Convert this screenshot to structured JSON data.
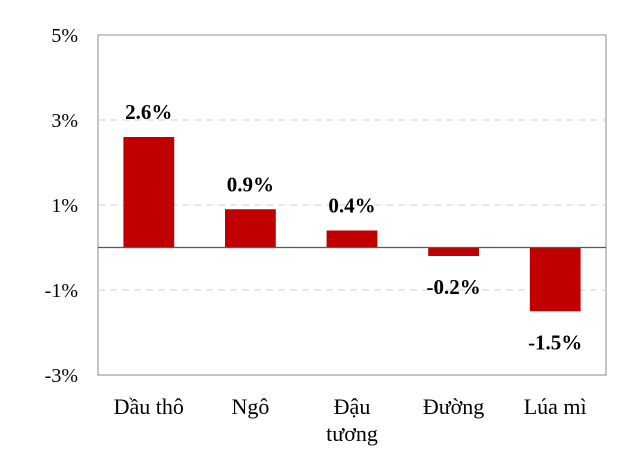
{
  "chart_data": {
    "type": "bar",
    "categories": [
      "Dầu thô",
      "Ngô",
      "Đậu tương",
      "Đường",
      "Lúa mì"
    ],
    "category_lines": [
      [
        "Dầu thô"
      ],
      [
        "Ngô"
      ],
      [
        "Đậu",
        "tương"
      ],
      [
        "Đường"
      ],
      [
        "Lúa mì"
      ]
    ],
    "values": [
      2.6,
      0.9,
      0.4,
      -0.2,
      -1.5
    ],
    "data_labels": [
      "2.6%",
      "0.9%",
      "0.4%",
      "-0.2%",
      "-1.5%"
    ],
    "y_ticks": [
      5,
      3,
      1,
      -1,
      -3
    ],
    "y_tick_labels": [
      "5%",
      "3%",
      "1%",
      "-1%",
      "-3%"
    ],
    "ylim": [
      -3,
      5
    ],
    "title": "",
    "xlabel": "",
    "ylabel": "",
    "grid": "dashed horizontal",
    "legend": "none",
    "bar_color": "#C00000",
    "grid_color": "#D9D9D9",
    "axis_color": "#595959"
  }
}
